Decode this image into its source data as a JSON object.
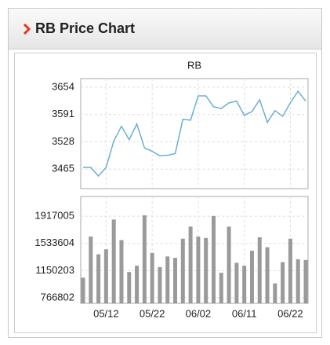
{
  "header": {
    "title": "RB Price Chart"
  },
  "chart_data": [
    {
      "type": "line",
      "title": "RB",
      "color": "#6ab0cf",
      "values": [
        3469,
        3469,
        3449,
        3469,
        3530,
        3564,
        3533,
        3569,
        3514,
        3506,
        3496,
        3497,
        3501,
        3580,
        3578,
        3634,
        3634,
        3609,
        3605,
        3618,
        3622,
        3589,
        3598,
        3625,
        3573,
        3600,
        3587,
        3618,
        3645,
        3622
      ],
      "ylim": [
        3420,
        3674
      ],
      "yticks": [
        3465,
        3528,
        3591,
        3654
      ],
      "grid": true
    },
    {
      "type": "bar",
      "color": "#9a9a9a",
      "categories": [
        null,
        null,
        null,
        "05/12",
        null,
        null,
        null,
        null,
        null,
        "05/22",
        null,
        null,
        null,
        null,
        null,
        "06/02",
        null,
        null,
        null,
        null,
        null,
        "06/11",
        null,
        null,
        null,
        null,
        null,
        "06/22",
        null,
        null
      ],
      "values": [
        1050000,
        1630000,
        1380000,
        1450000,
        1870000,
        1580000,
        1130000,
        1220000,
        1930000,
        1400000,
        1200000,
        1350000,
        1330000,
        1600000,
        1770000,
        1630000,
        1610000,
        1920000,
        1120000,
        1770000,
        1260000,
        1220000,
        1430000,
        1620000,
        1480000,
        970000,
        1270000,
        1600000,
        1310000,
        1300000
      ],
      "ylim": [
        689000,
        2195000
      ],
      "yticks": [
        766802,
        1150203,
        1533604,
        1917005
      ],
      "grid": true
    }
  ]
}
